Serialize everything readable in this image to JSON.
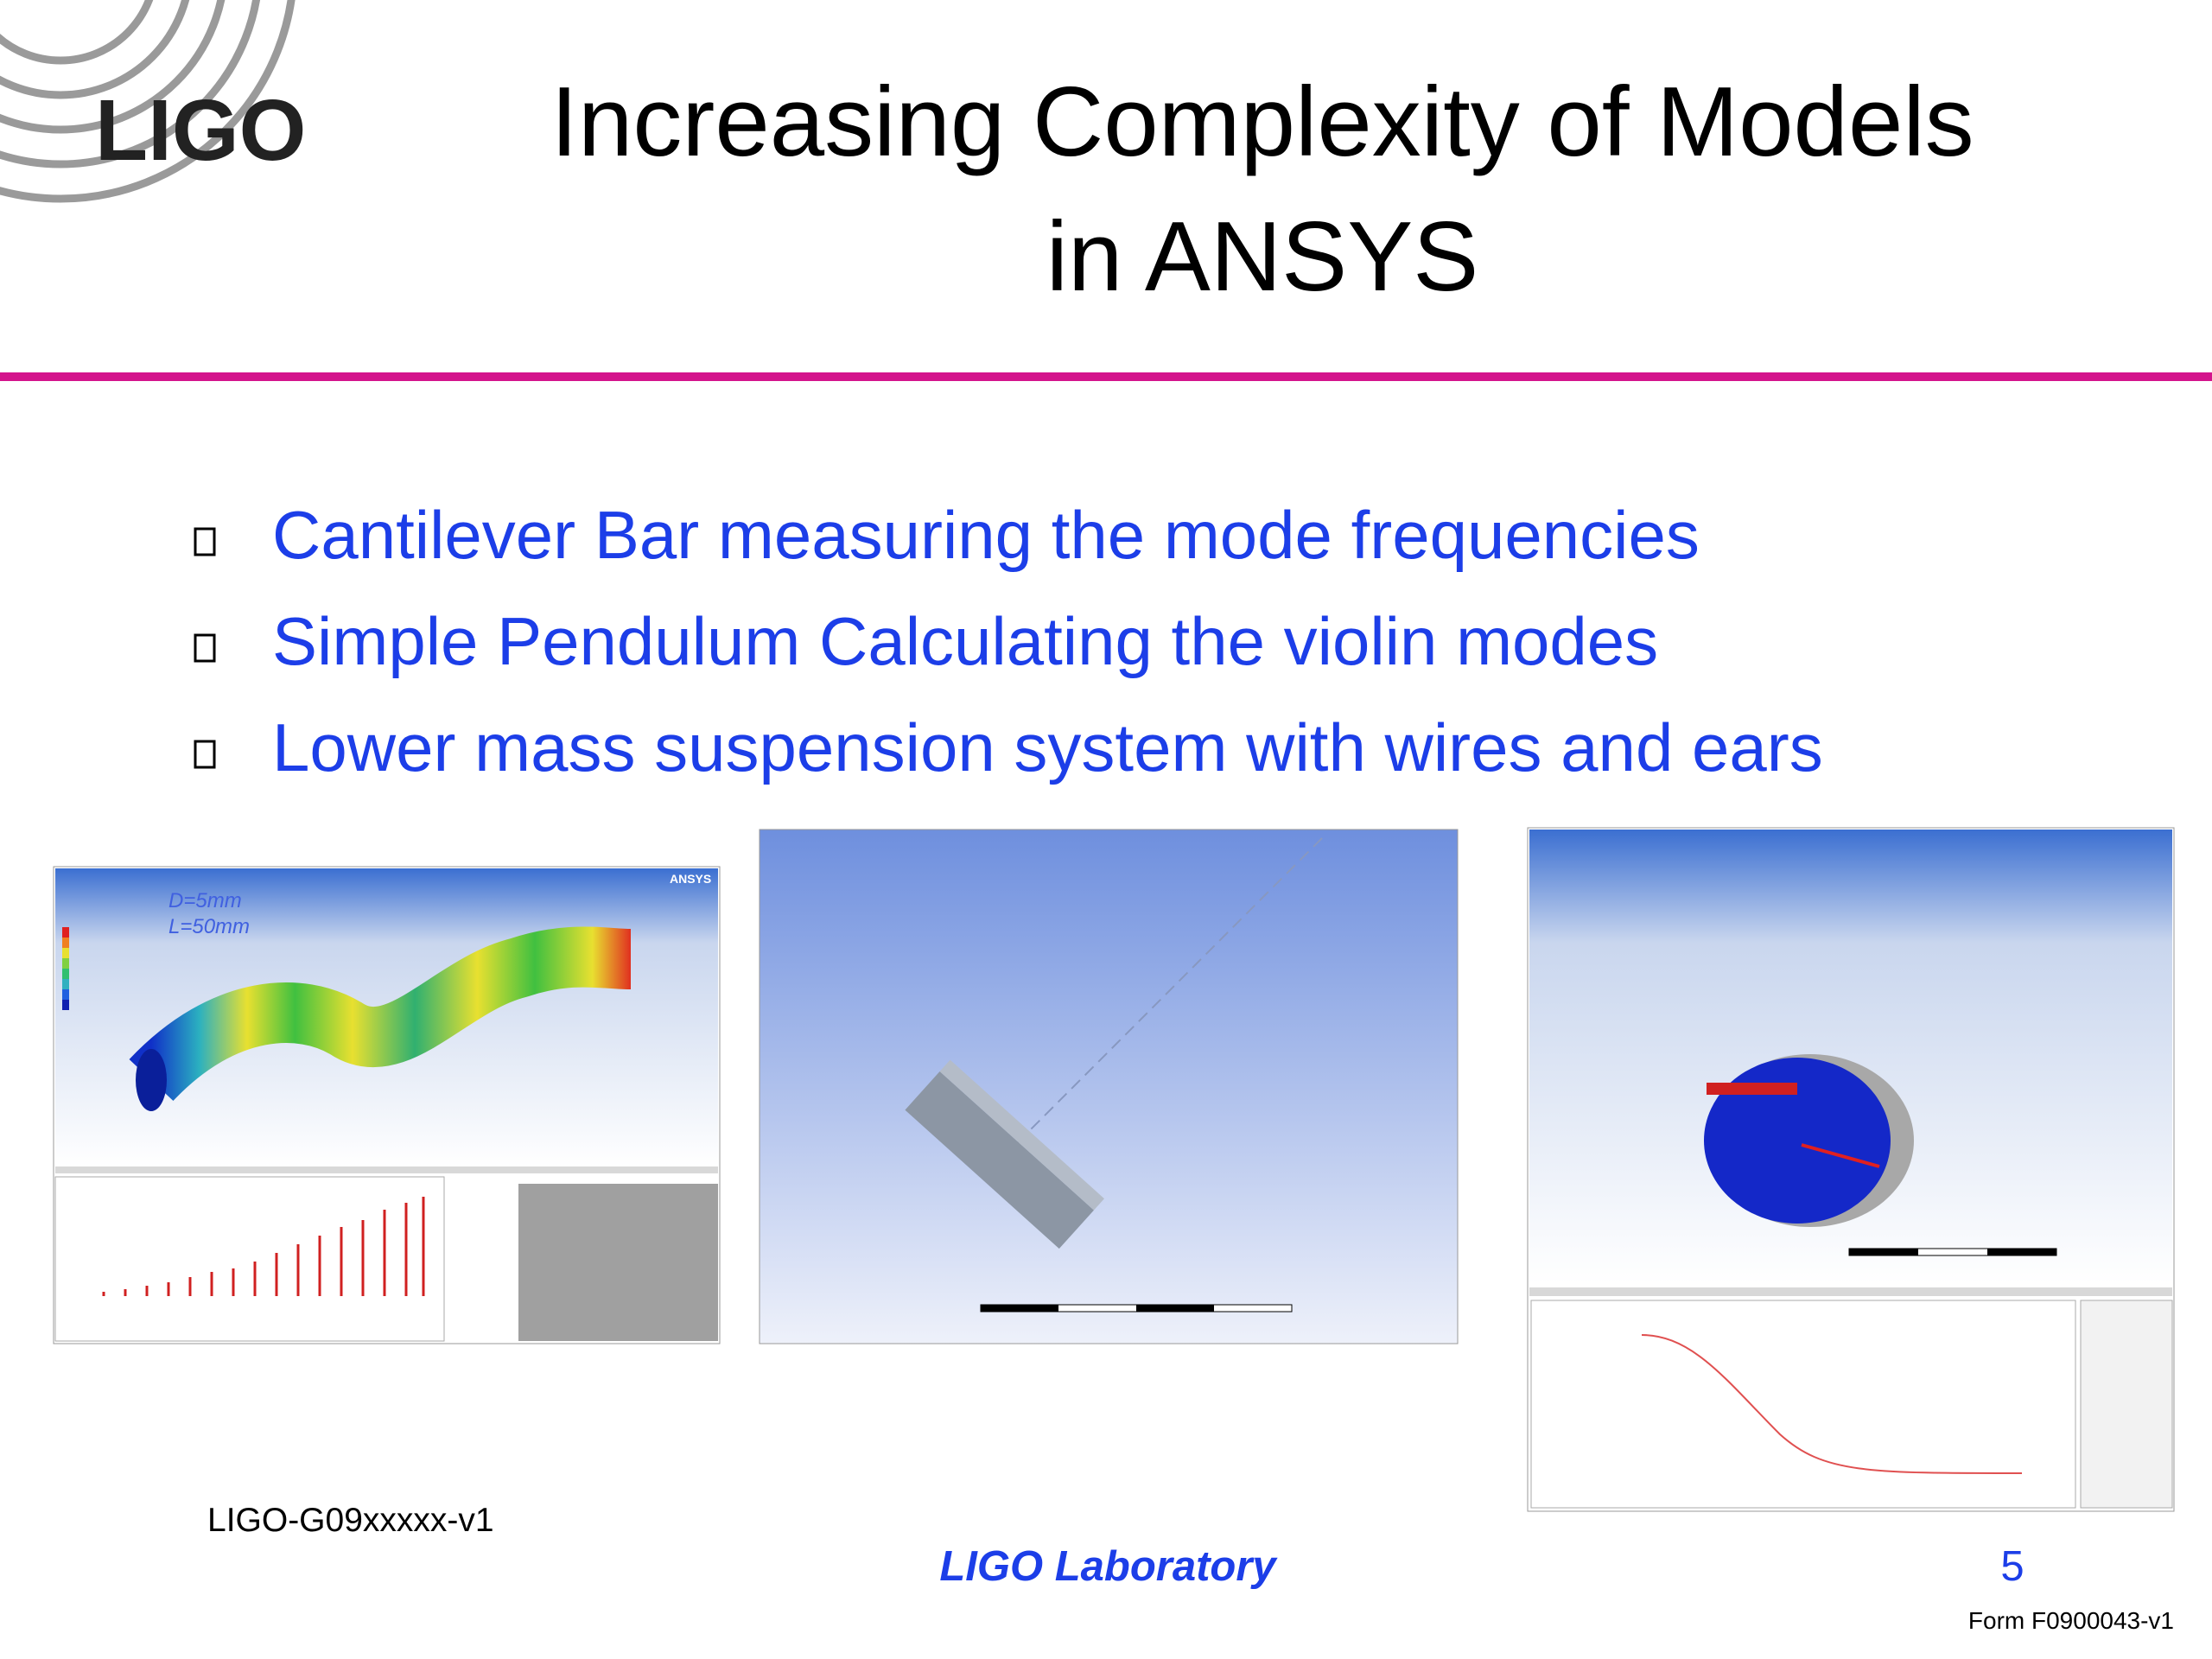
{
  "header": {
    "logo": "LIGO",
    "title": [
      "Increasing Complexity of Models",
      "in ANSYS"
    ]
  },
  "bullets": [
    "Cantilever Bar measuring the mode frequencies",
    "Simple Pendulum Calculating the violin modes",
    "Lower mass suspension system with wires and ears"
  ],
  "figures": {
    "cantilever": {
      "annotation": [
        "D=5mm",
        "L=50mm"
      ],
      "brand": "ANSYS"
    }
  },
  "footer": {
    "document_id": "LIGO-G09xxxxx-v1",
    "organization": "LIGO Laboratory",
    "page": "5",
    "form": "Form F0900043-v1"
  }
}
